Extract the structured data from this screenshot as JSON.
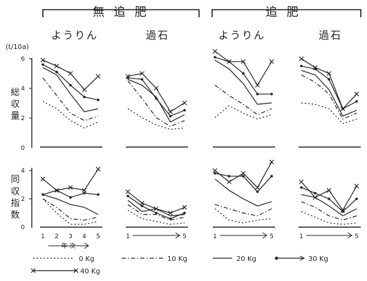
{
  "headers": {
    "no_topdress": "無 追 肥",
    "topdress": "追 肥",
    "fertilizers": [
      "ようりん",
      "過石",
      "ようりん",
      "過石"
    ]
  },
  "axes": {
    "unit": "(t/10a)",
    "top_ylabel": "総 収 量",
    "bottom_ylabel": "同 収 指 数",
    "top_ticks": [
      "0",
      "2",
      "4",
      "6"
    ],
    "bottom_ticks": [
      "0",
      "2",
      "4"
    ],
    "x_ticks_detail": [
      "1",
      "2",
      "3",
      "4",
      "5"
    ],
    "x_ticks_short": [
      "1",
      "5"
    ],
    "x_label": "年 次"
  },
  "legend": [
    {
      "label": "0 Kg",
      "style": "dotted"
    },
    {
      "label": "10 Kg",
      "style": "dashdot"
    },
    {
      "label": "20 Kg",
      "style": "solid"
    },
    {
      "label": "30 Kg",
      "style": "dot-marker"
    },
    {
      "label": "40 Kg",
      "style": "x-marker"
    }
  ],
  "chart_data": {
    "type": "line",
    "x": [
      1,
      2,
      3,
      4,
      5
    ],
    "series_names": [
      "0 Kg",
      "10 Kg",
      "20 Kg",
      "30 Kg",
      "40 Kg"
    ],
    "panels": [
      {
        "row": "総収量",
        "column": "無追肥 ようりん",
        "ylim": [
          0,
          6
        ],
        "values": [
          [
            3.1,
            2.6,
            1.8,
            1.3,
            1.7
          ],
          [
            4.7,
            3.5,
            2.3,
            1.8,
            2.1
          ],
          [
            5.4,
            4.9,
            3.6,
            2.4,
            2.6
          ],
          [
            5.6,
            5.1,
            4.2,
            3.4,
            3.2
          ],
          [
            5.9,
            5.5,
            5.0,
            3.9,
            4.8
          ]
        ]
      },
      {
        "row": "総収量",
        "column": "無追肥 過石",
        "ylim": [
          0,
          6
        ],
        "values": [
          [
            2.6,
            2.0,
            1.5,
            1.2,
            1.3
          ],
          [
            4.5,
            3.3,
            2.0,
            1.4,
            1.8
          ],
          [
            4.6,
            4.2,
            3.4,
            1.7,
            2.2
          ],
          [
            4.7,
            4.6,
            3.3,
            2.1,
            2.5
          ],
          [
            4.8,
            5.0,
            4.0,
            2.4,
            3.0
          ]
        ]
      },
      {
        "row": "総収量",
        "column": "追肥 ようりん",
        "ylim": [
          0,
          6
        ],
        "values": [
          [
            2.0,
            2.8,
            2.3,
            1.9,
            2.2
          ],
          [
            4.2,
            3.5,
            2.9,
            2.2,
            2.6
          ],
          [
            5.9,
            5.3,
            4.3,
            2.9,
            3.0
          ],
          [
            6.1,
            5.8,
            5.0,
            3.6,
            3.6
          ],
          [
            6.5,
            5.8,
            5.8,
            4.2,
            5.8
          ]
        ]
      },
      {
        "row": "総収量",
        "column": "追肥 過石",
        "ylim": [
          0,
          6
        ],
        "values": [
          [
            3.0,
            2.9,
            2.6,
            1.6,
            1.9
          ],
          [
            4.9,
            4.4,
            3.6,
            1.9,
            2.3
          ],
          [
            5.2,
            4.9,
            3.9,
            2.1,
            2.5
          ],
          [
            5.5,
            5.3,
            4.6,
            2.6,
            3.1
          ],
          [
            6.0,
            5.4,
            5.0,
            2.6,
            3.6
          ]
        ]
      },
      {
        "row": "同収指数",
        "column": "無追肥 ようりん",
        "ylim": [
          0,
          4
        ],
        "values": [
          [
            2.0,
            1.0,
            0.2,
            0.2,
            0.4
          ],
          [
            2.0,
            1.4,
            0.6,
            0.5,
            0.7
          ],
          [
            2.3,
            2.0,
            1.6,
            1.4,
            0.9
          ],
          [
            2.3,
            2.6,
            2.1,
            2.4,
            2.3
          ],
          [
            3.4,
            2.6,
            2.8,
            2.6,
            4.1
          ]
        ]
      },
      {
        "row": "同収指数",
        "column": "無追肥 過石",
        "ylim": [
          0,
          4
        ],
        "values": [
          [
            1.2,
            0.6,
            0.4,
            0.2,
            0.3
          ],
          [
            1.6,
            0.9,
            0.9,
            0.5,
            0.7
          ],
          [
            1.9,
            1.1,
            1.3,
            0.8,
            0.9
          ],
          [
            2.2,
            1.5,
            1.0,
            0.6,
            1.0
          ],
          [
            2.5,
            1.7,
            1.3,
            1.0,
            1.4
          ]
        ]
      },
      {
        "row": "同収指数",
        "column": "追肥 ようりん",
        "ylim": [
          0,
          4
        ],
        "values": [
          [
            1.3,
            0.5,
            0.3,
            0.5,
            0.6
          ],
          [
            1.6,
            1.3,
            1.0,
            0.8,
            1.3
          ],
          [
            3.4,
            2.6,
            2.0,
            1.5,
            1.8
          ],
          [
            3.8,
            3.6,
            3.6,
            2.5,
            3.6
          ],
          [
            4.0,
            3.2,
            3.8,
            2.8,
            4.6
          ]
        ]
      },
      {
        "row": "同収指数",
        "column": "追肥 過石",
        "ylim": [
          0,
          4
        ],
        "values": [
          [
            1.1,
            0.7,
            0.3,
            0.2,
            0.3
          ],
          [
            1.8,
            1.4,
            0.8,
            0.5,
            0.8
          ],
          [
            2.3,
            2.1,
            1.5,
            0.8,
            1.3
          ],
          [
            2.8,
            2.4,
            2.0,
            1.1,
            2.0
          ],
          [
            3.2,
            2.1,
            2.6,
            1.2,
            2.9
          ]
        ]
      }
    ]
  }
}
